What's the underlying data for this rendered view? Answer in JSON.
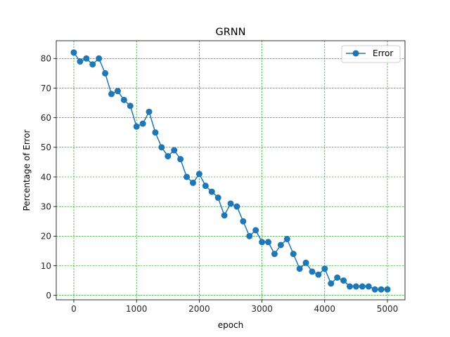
{
  "chart_data": {
    "type": "line",
    "title": "GRNN",
    "xlabel": "epoch",
    "ylabel": "Percentage of Error",
    "xlim": [
      -280,
      5280
    ],
    "ylim": [
      -1.5,
      86
    ],
    "xticks": [
      0,
      1000,
      2000,
      3000,
      4000,
      5000
    ],
    "yticks": [
      0,
      10,
      20,
      30,
      40,
      50,
      60,
      70,
      80
    ],
    "grid": true,
    "grid_color": "#008000",
    "grid_style": "dashed",
    "legend_position": "top-right",
    "series": [
      {
        "name": "Error",
        "color": "#1f77b4",
        "marker": "circle",
        "x": [
          0,
          100,
          200,
          300,
          400,
          500,
          600,
          700,
          800,
          900,
          1000,
          1100,
          1200,
          1300,
          1400,
          1500,
          1600,
          1700,
          1800,
          1900,
          2000,
          2100,
          2200,
          2300,
          2400,
          2500,
          2600,
          2700,
          2800,
          2900,
          3000,
          3100,
          3200,
          3300,
          3400,
          3500,
          3600,
          3700,
          3800,
          3900,
          4000,
          4100,
          4200,
          4300,
          4400,
          4500,
          4600,
          4700,
          4800,
          4900,
          5000
        ],
        "values": [
          82,
          79,
          80,
          78,
          80,
          75,
          68,
          69,
          66,
          64,
          57,
          58,
          62,
          55,
          50,
          47,
          49,
          46,
          40,
          38,
          41,
          37,
          35,
          33,
          27,
          31,
          30,
          25,
          20,
          22,
          18,
          18,
          14,
          17,
          19,
          14,
          9,
          11,
          8,
          7,
          9,
          4,
          6,
          5,
          3,
          3,
          3,
          3,
          2,
          2,
          2
        ]
      }
    ]
  }
}
